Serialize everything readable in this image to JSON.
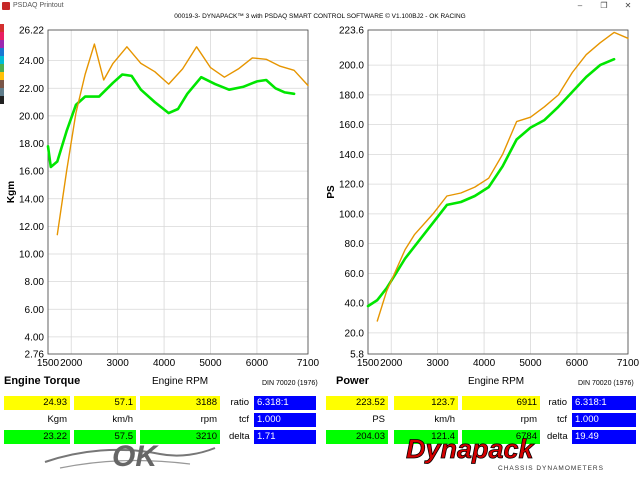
{
  "window": {
    "title": "PSDAQ Printout",
    "min_icon": "minimize-icon",
    "max_icon": "restore-icon",
    "close_icon": "close-icon"
  },
  "report_title": "00019-3- DYNAPACK™ 3 with PSDAQ SMART CONTROL SOFTWARE © V1.100BJ2 - OK RACING",
  "colors": {
    "torque_accent": "#00e600",
    "compare_curve": "#e69500",
    "yellow": "#ffff00",
    "green": "#00ff00",
    "blue": "#0000ff"
  },
  "left_strip_colors": [
    "#d32f2f",
    "#e91e63",
    "#9c27b0",
    "#1976d2",
    "#00bcd4",
    "#4caf50",
    "#ffc107",
    "#795548",
    "#607d8b",
    "#212121"
  ],
  "chart_data": [
    {
      "type": "line",
      "ylabel": "Kgm",
      "xlabel": "Engine RPM",
      "xlim": [
        1500,
        7100
      ],
      "ylim": [
        2.76,
        26.22
      ],
      "yticks": [
        "26.22",
        "24.00",
        "22.00",
        "20.00",
        "18.00",
        "16.00",
        "14.00",
        "12.00",
        "10.00",
        "8.00",
        "6.00",
        "4.00",
        "2.76"
      ],
      "ytick_values": [
        26.22,
        24,
        22,
        20,
        18,
        16,
        14,
        12,
        10,
        8,
        6,
        4,
        2.76
      ],
      "xticks": [
        "1500",
        "2000",
        "3000",
        "4000",
        "5000",
        "6000",
        "7100"
      ],
      "xtick_values": [
        1500,
        2000,
        3000,
        4000,
        5000,
        6000,
        7100
      ],
      "grid": true,
      "series": [
        {
          "color": "#00e600",
          "x": [
            1500,
            1560,
            1700,
            1900,
            2100,
            2300,
            2600,
            2900,
            3100,
            3300,
            3500,
            3800,
            4100,
            4300,
            4500,
            4800,
            5100,
            5400,
            5700,
            6000,
            6200,
            6400,
            6600,
            6800
          ],
          "y": [
            17.8,
            16.3,
            16.7,
            18.9,
            20.8,
            21.4,
            21.4,
            22.4,
            23.0,
            22.9,
            21.9,
            21.0,
            20.2,
            20.5,
            21.6,
            22.8,
            22.3,
            21.9,
            22.1,
            22.5,
            22.6,
            22.0,
            21.7,
            21.6
          ]
        },
        {
          "color": "#e69500",
          "x": [
            1700,
            1900,
            2100,
            2300,
            2500,
            2700,
            2900,
            3200,
            3500,
            3800,
            4100,
            4400,
            4700,
            5000,
            5300,
            5600,
            5900,
            6200,
            6500,
            6800,
            7100
          ],
          "y": [
            11.4,
            16.0,
            20.2,
            23.0,
            25.2,
            22.6,
            23.8,
            25.0,
            23.8,
            23.2,
            22.3,
            23.4,
            25.0,
            23.5,
            22.8,
            23.4,
            24.2,
            24.1,
            23.6,
            23.3,
            22.2
          ]
        }
      ]
    },
    {
      "type": "line",
      "ylabel": "PS",
      "xlabel": "Engine RPM",
      "xlim": [
        1500,
        7100
      ],
      "ylim": [
        5.8,
        223.6
      ],
      "yticks": [
        "223.6",
        "200.0",
        "180.0",
        "160.0",
        "140.0",
        "120.0",
        "100.0",
        "80.0",
        "60.0",
        "40.0",
        "20.0",
        "5.8"
      ],
      "ytick_values": [
        223.6,
        200,
        180,
        160,
        140,
        120,
        100,
        80,
        60,
        40,
        20,
        5.8
      ],
      "xticks": [
        "1500",
        "2000",
        "3000",
        "4000",
        "5000",
        "6000",
        "7100"
      ],
      "xtick_values": [
        1500,
        2000,
        3000,
        4000,
        5000,
        6000,
        7100
      ],
      "grid": true,
      "series": [
        {
          "color": "#00e600",
          "x": [
            1500,
            1700,
            1900,
            2100,
            2300,
            2600,
            2900,
            3200,
            3500,
            3800,
            4100,
            4400,
            4700,
            5000,
            5300,
            5600,
            5900,
            6200,
            6500,
            6800
          ],
          "y": [
            38,
            42,
            50,
            60,
            70,
            82,
            94,
            106,
            108,
            112,
            118,
            132,
            150,
            158,
            163,
            172,
            182,
            192,
            200,
            204
          ]
        },
        {
          "color": "#e69500",
          "x": [
            1700,
            1900,
            2100,
            2300,
            2500,
            2900,
            3200,
            3500,
            3800,
            4100,
            4400,
            4700,
            5000,
            5300,
            5600,
            5900,
            6200,
            6500,
            6800,
            7100
          ],
          "y": [
            28,
            48,
            62,
            76,
            86,
            100,
            112,
            114,
            118,
            124,
            140,
            162,
            165,
            172,
            180,
            195,
            207,
            215,
            222,
            218
          ]
        }
      ]
    }
  ],
  "readouts": {
    "torque": {
      "label": "Engine Torque",
      "rpm_title": "Engine RPM",
      "din": "DIN 70020 (1976)",
      "row1": [
        "24.93",
        "57.1",
        "3188"
      ],
      "units": [
        "Kgm",
        "km/h",
        "rpm"
      ],
      "row2": [
        "23.22",
        "57.5",
        "3210"
      ],
      "ratio_label": "ratio",
      "ratio": "6.318:1",
      "tcf_label": "tcf",
      "tcf": "1.000",
      "delta_label": "delta",
      "delta": "1.71"
    },
    "power": {
      "label": "Power",
      "rpm_title": "Engine RPM",
      "din": "DIN 70020 (1976)",
      "row1": [
        "223.52",
        "123.7",
        "6911"
      ],
      "units": [
        "PS",
        "km/h",
        "rpm"
      ],
      "row2": [
        "204.03",
        "121.4",
        "6784"
      ],
      "ratio_label": "ratio",
      "ratio": "6.318:1",
      "tcf_label": "tcf",
      "tcf": "1.000",
      "delta_label": "delta",
      "delta": "19.49"
    }
  },
  "logos": {
    "left": "OK",
    "right": "Dynapack",
    "right_sub": "CHASSIS DYNAMOMETERS"
  }
}
